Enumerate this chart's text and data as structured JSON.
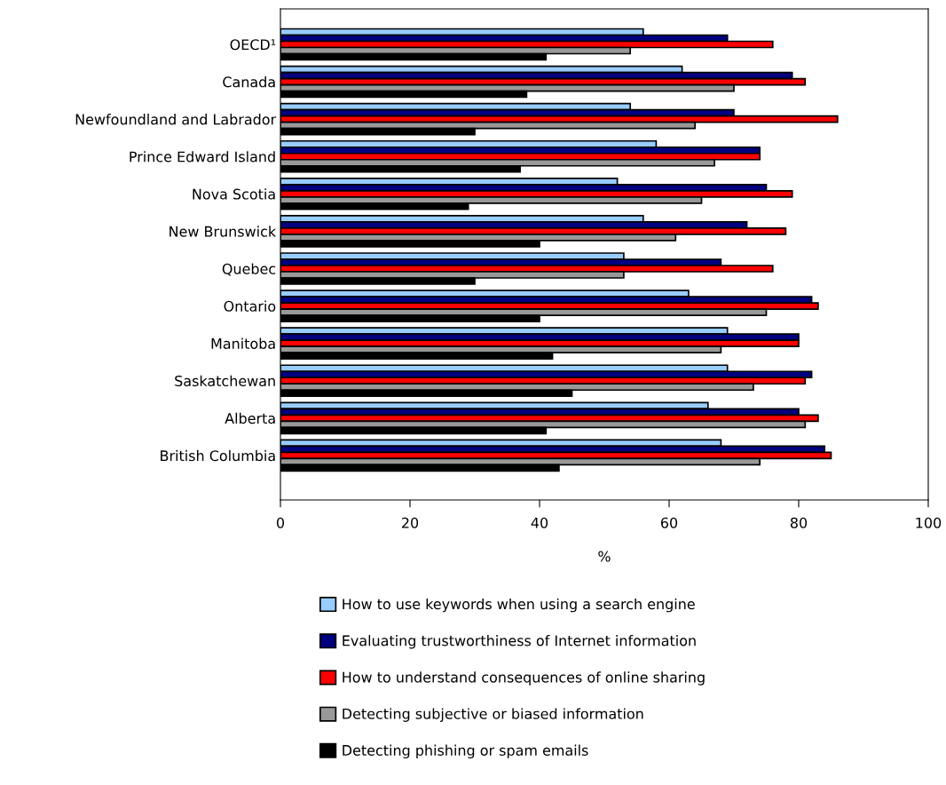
{
  "chart_data": {
    "type": "bar",
    "orientation": "horizontal",
    "xlabel": "%",
    "xlim": [
      0,
      100
    ],
    "xticks": [
      0,
      20,
      40,
      60,
      80,
      100
    ],
    "grid": false,
    "legend": "bottom",
    "categories": [
      "OECD¹",
      "Canada",
      "Newfoundland and Labrador",
      "Prince Edward Island",
      "Nova Scotia",
      "New Brunswick",
      "Quebec",
      "Ontario",
      "Manitoba",
      "Saskatchewan",
      "Alberta",
      "British Columbia"
    ],
    "series": [
      {
        "name": "How to use keywords when using a search engine",
        "color": "#99ccff",
        "values": [
          56,
          62,
          54,
          58,
          52,
          56,
          53,
          63,
          69,
          69,
          66,
          68
        ]
      },
      {
        "name": "Evaluating trustworthiness of Internet information",
        "color": "#000080",
        "values": [
          69,
          79,
          70,
          74,
          75,
          72,
          68,
          82,
          80,
          82,
          80,
          84
        ]
      },
      {
        "name": "How to understand consequences of online sharing",
        "color": "#ff0000",
        "values": [
          76,
          81,
          86,
          74,
          79,
          78,
          76,
          83,
          80,
          81,
          83,
          85
        ]
      },
      {
        "name": "Detecting subjective or biased information",
        "color": "#999999",
        "values": [
          54,
          70,
          64,
          67,
          65,
          61,
          53,
          75,
          68,
          73,
          81,
          74
        ]
      },
      {
        "name": "Detecting phishing or spam emails",
        "color": "#000000",
        "values": [
          41,
          38,
          30,
          37,
          29,
          40,
          30,
          40,
          42,
          45,
          41,
          43
        ]
      }
    ]
  }
}
